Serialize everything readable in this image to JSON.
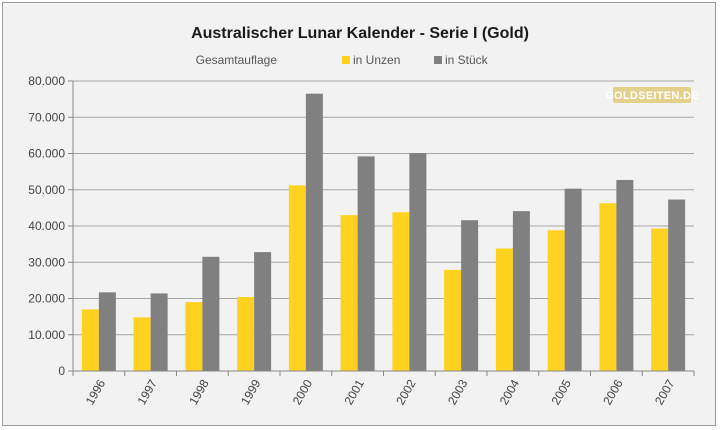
{
  "colors": {
    "series_unzen": "#FFD21F",
    "series_stueck": "#808080",
    "background": "#f2f2f2",
    "gridline": "#a6a6a6",
    "watermark_bg": "#e2d08c"
  },
  "watermark": {
    "text": "GOLDSEITEN.DE"
  },
  "chart_data": {
    "type": "bar",
    "title": "Australischer Lunar Kalender - Serie I (Gold)",
    "legend_title": "Gesamtauflage",
    "legend_position": "top",
    "grid": true,
    "xlabel": "",
    "ylabel": "",
    "ylim": [
      0,
      80000
    ],
    "y_ticks": [
      0,
      10000,
      20000,
      30000,
      40000,
      50000,
      60000,
      70000,
      80000
    ],
    "y_tick_labels": [
      "0",
      "10.000",
      "20.000",
      "30.000",
      "40.000",
      "50.000",
      "60.000",
      "70.000",
      "80.000"
    ],
    "categories": [
      "1996",
      "1997",
      "1998",
      "1999",
      "2000",
      "2001",
      "2002",
      "2003",
      "2004",
      "2005",
      "2006",
      "2007"
    ],
    "series": [
      {
        "name": "in Unzen",
        "color": "#FFD21F",
        "values": [
          17000,
          14800,
          19000,
          20400,
          51200,
          43000,
          43800,
          27900,
          33800,
          38800,
          46300,
          39300
        ]
      },
      {
        "name": "in Stück",
        "color": "#808080",
        "values": [
          21700,
          21400,
          31500,
          32800,
          76500,
          59200,
          60100,
          41600,
          44100,
          50300,
          52700,
          47300
        ]
      }
    ]
  }
}
